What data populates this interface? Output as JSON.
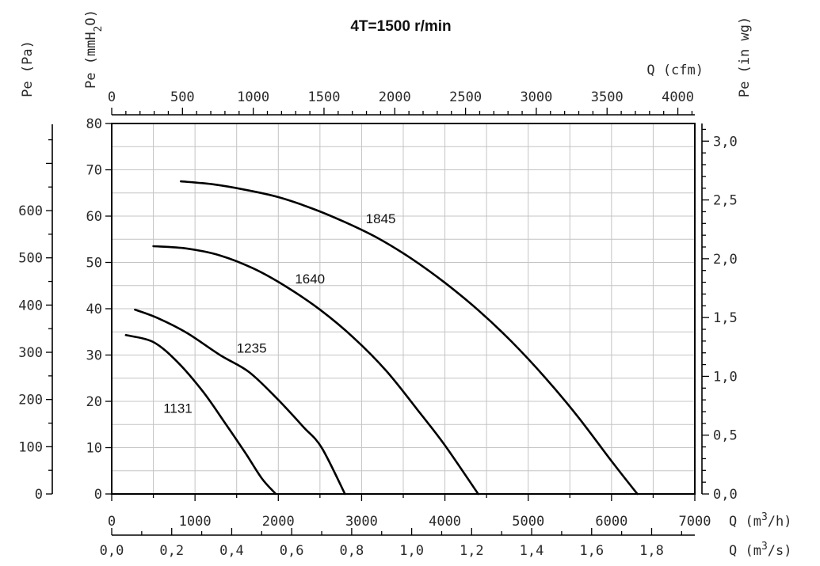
{
  "chart_data": {
    "type": "line",
    "title": "4T=1500 r/min",
    "x_axes": {
      "bottom_primary": {
        "label": "Q (m³/h)",
        "label_text": "Q (m",
        "label_sup": "3",
        "label_tail": "/h)",
        "range": [
          0,
          7000
        ],
        "ticks": [
          "0",
          "1000",
          "2000",
          "3000",
          "4000",
          "5000",
          "6000",
          "7000"
        ]
      },
      "bottom_secondary": {
        "label": "Q (m³/s)",
        "label_text": "Q (m",
        "label_sup": "3",
        "label_tail": "/s)",
        "range": [
          0,
          1.944
        ],
        "ticks": [
          "0,0",
          "0,2",
          "0,4",
          "0,6",
          "0,8",
          "1,0",
          "1,2",
          "1,4",
          "1,6",
          "1,8"
        ]
      },
      "top": {
        "label": "Q (cfm)",
        "range": [
          0,
          4120
        ],
        "ticks": [
          "0",
          "500",
          "1000",
          "1500",
          "2000",
          "2500",
          "3000",
          "3500",
          "4000"
        ]
      }
    },
    "y_axes": {
      "left_outer": {
        "label": "Pe (Pa)",
        "range": [
          0,
          784.5
        ],
        "ticks": [
          "0",
          "100",
          "200",
          "300",
          "400",
          "500",
          "600"
        ]
      },
      "left_inner": {
        "label": "Pe (mmH₂O)",
        "label_text": "Pe (mmH",
        "label_sub": "2",
        "label_tail": "O)",
        "range": [
          0,
          80
        ],
        "ticks": [
          "0",
          "10",
          "20",
          "30",
          "40",
          "50",
          "60",
          "70",
          "80"
        ]
      },
      "right": {
        "label": "Pe (in wg)",
        "range": [
          0,
          3.15
        ],
        "ticks": [
          "0,0",
          "0,5",
          "1,0",
          "1,5",
          "2,0",
          "2,5",
          "3,0"
        ]
      }
    },
    "grid": true,
    "series": [
      {
        "name": "1131",
        "x": [
          170,
          500,
          800,
          1100,
          1350,
          1600,
          1800,
          1970
        ],
        "y": [
          34.3,
          32.8,
          28.3,
          22.0,
          15.6,
          9.0,
          3.4,
          0
        ]
      },
      {
        "name": "1235",
        "x": [
          280,
          550,
          900,
          1300,
          1650,
          2000,
          2300,
          2520,
          2800
        ],
        "y": [
          39.8,
          38.0,
          34.8,
          30.0,
          26.3,
          20.3,
          14.5,
          10.0,
          0
        ]
      },
      {
        "name": "1640",
        "x": [
          500,
          900,
          1300,
          1700,
          2100,
          2500,
          2900,
          3300,
          3700,
          4000,
          4400
        ],
        "y": [
          53.5,
          53.0,
          51.5,
          48.7,
          44.7,
          39.8,
          33.8,
          26.5,
          17.5,
          10.5,
          0
        ]
      },
      {
        "name": "1845",
        "x": [
          830,
          1200,
          1600,
          2000,
          2400,
          2800,
          3200,
          3600,
          4000,
          4400,
          4800,
          5200,
          5600,
          6000,
          6310
        ],
        "y": [
          67.5,
          66.9,
          65.7,
          64.1,
          61.7,
          58.7,
          55.2,
          50.8,
          45.6,
          39.7,
          32.9,
          25.2,
          16.6,
          7.1,
          0
        ]
      }
    ]
  }
}
